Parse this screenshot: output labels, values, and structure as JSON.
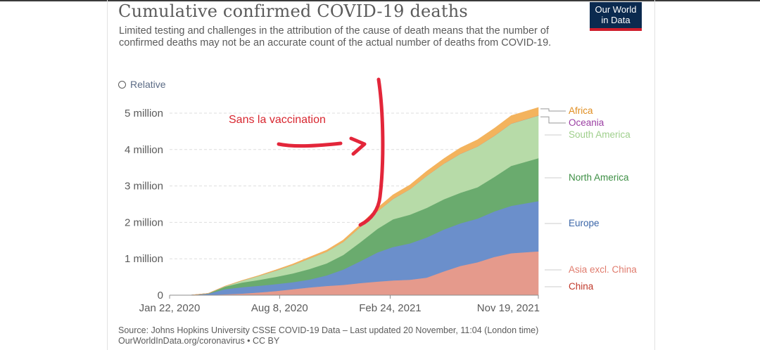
{
  "header": {
    "title": "Cumulative confirmed COVID-19 deaths",
    "subtitle": "Limited testing and challenges in the attribution of the cause of death means that the number of confirmed deaths may not be an accurate count of the actual number of deaths from COVID-19.",
    "logo_line1": "Our World",
    "logo_line2": "in Data"
  },
  "controls": {
    "relative_label": "Relative"
  },
  "annotation": {
    "text": "Sans la vaccination",
    "color": "#d8262f"
  },
  "footer": {
    "source": "Source: Johns Hopkins University CSSE COVID-19 Data – Last updated 20 November, 11:04 (London time)",
    "credit": "OurWorldInData.org/coronavirus • CC BY"
  },
  "chart_data": {
    "type": "area",
    "stacked": true,
    "title": "Cumulative confirmed COVID-19 deaths",
    "y_tick_labels": [
      "0",
      "1 million",
      "2 million",
      "3 million",
      "4 million",
      "5 million"
    ],
    "y_ticks": [
      0,
      1000000,
      2000000,
      3000000,
      4000000,
      5000000
    ],
    "ylim": [
      0,
      5000000
    ],
    "x_tick_labels": [
      "Jan 22, 2020",
      "Aug 8, 2020",
      "Feb 24, 2021",
      "Nov 19, 2021"
    ],
    "x_ticks": [
      "2020-01-22",
      "2020-08-08",
      "2021-02-24",
      "2021-11-19"
    ],
    "xlim": [
      "2020-01-22",
      "2021-11-19"
    ],
    "grid": true,
    "legend_position": "right",
    "x": [
      "2020-01-22",
      "2020-03-01",
      "2020-04-01",
      "2020-05-01",
      "2020-06-01",
      "2020-07-01",
      "2020-08-01",
      "2020-09-01",
      "2020-10-01",
      "2020-11-01",
      "2020-12-01",
      "2021-01-01",
      "2021-02-01",
      "2021-03-01",
      "2021-04-01",
      "2021-05-01",
      "2021-06-01",
      "2021-07-01",
      "2021-08-01",
      "2021-09-01",
      "2021-10-01",
      "2021-11-19"
    ],
    "series": [
      {
        "name": "China",
        "color": "#c15065",
        "values": [
          0,
          3000,
          3300,
          4600,
          4600,
          4600,
          4600,
          4600,
          4700,
          4700,
          4700,
          4800,
          4800,
          4800,
          4800,
          4800,
          4800,
          4800,
          4800,
          4800,
          4800,
          4800
        ]
      },
      {
        "name": "Asia excl. China",
        "color": "#e59a8c",
        "values": [
          0,
          0,
          5000,
          20000,
          40000,
          70000,
          110000,
          160000,
          210000,
          250000,
          280000,
          330000,
          370000,
          400000,
          420000,
          480000,
          650000,
          800000,
          900000,
          1050000,
          1150000,
          1200000
        ]
      },
      {
        "name": "Europe",
        "color": "#6b8fcb",
        "values": [
          0,
          100,
          35000,
          140000,
          175000,
          185000,
          190000,
          195000,
          215000,
          290000,
          420000,
          600000,
          800000,
          920000,
          1000000,
          1100000,
          1150000,
          1170000,
          1200000,
          1250000,
          1300000,
          1380000
        ]
      },
      {
        "name": "North America",
        "color": "#6aab6e",
        "values": [
          0,
          20,
          6000,
          70000,
          130000,
          160000,
          200000,
          240000,
          290000,
          330000,
          400000,
          520000,
          650000,
          760000,
          790000,
          815000,
          830000,
          840000,
          860000,
          950000,
          1100000,
          1180000
        ]
      },
      {
        "name": "South America",
        "color": "#b7dba8",
        "values": [
          0,
          0,
          1000,
          10000,
          50000,
          110000,
          170000,
          230000,
          290000,
          320000,
          360000,
          420000,
          480000,
          560000,
          700000,
          880000,
          980000,
          1070000,
          1120000,
          1130000,
          1160000,
          1170000
        ]
      },
      {
        "name": "Oceania",
        "color": "#a05aa5",
        "values": [
          0,
          0,
          20,
          100,
          110,
          120,
          300,
          800,
          900,
          950,
          950,
          950,
          950,
          960,
          960,
          960,
          970,
          980,
          1000,
          1400,
          2000,
          2500
        ]
      },
      {
        "name": "Africa",
        "color": "#f3b35d",
        "values": [
          0,
          0,
          200,
          1800,
          5000,
          11000,
          20000,
          29000,
          36000,
          42000,
          50000,
          62000,
          90000,
          110000,
          115000,
          125000,
          135000,
          160000,
          185000,
          205000,
          215000,
          220000
        ]
      }
    ]
  }
}
